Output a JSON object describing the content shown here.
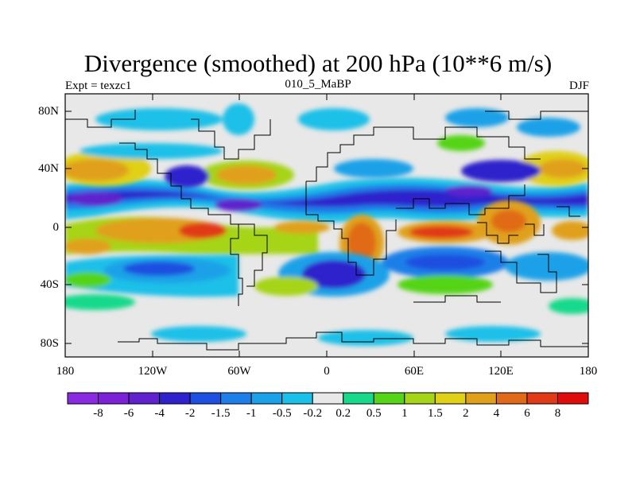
{
  "title": "Divergence (smoothed) at 200 hPa (10**6 m/s)",
  "subtitle_left": "Expt = texzc1",
  "subtitle_center": "010_5_MaBP",
  "subtitle_right": "DJF",
  "y_ticks": [
    "80N",
    "40N",
    "0",
    "40S",
    "80S"
  ],
  "x_ticks": [
    "180",
    "120W",
    "60W",
    "0",
    "60E",
    "120E",
    "180"
  ],
  "colorbar": {
    "labels": [
      "-8",
      "-6",
      "-4",
      "-2",
      "-1.5",
      "-1",
      "-0.5",
      "-0.2",
      "0.2",
      "0.5",
      "1",
      "1.5",
      "2",
      "4",
      "6",
      "8"
    ],
    "colors": [
      "#8a2be2",
      "#7b22d8",
      "#5f22cc",
      "#2f22cc",
      "#1d4fe0",
      "#1f7fe8",
      "#1aa1e8",
      "#1ac0e8",
      "#e8e8e8",
      "#18d98b",
      "#55d418",
      "#a6d418",
      "#e0d018",
      "#e0a01a",
      "#e06a18",
      "#e03a18",
      "#e00c0c"
    ]
  }
}
